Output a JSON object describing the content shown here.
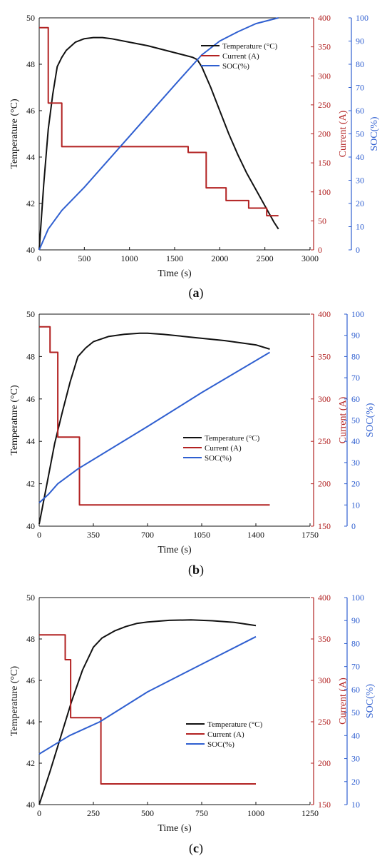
{
  "colors": {
    "temperature": "#111111",
    "current": "#b22222",
    "soc": "#2f5fd0",
    "axis_black": "#111111",
    "axis_red": "#b22222",
    "axis_blue": "#2f5fd0"
  },
  "chart_data": [
    {
      "type": "line",
      "caption": {
        "open": "(",
        "letter": "a",
        "close": ")"
      },
      "xlabel": "Time (s)",
      "ylabel_left": "Temperature (°C)",
      "ylabel_right1": "Current (A)",
      "ylabel_right2": "SOC(%)",
      "xlim": [
        0,
        3000
      ],
      "xticks": [
        0,
        500,
        1000,
        1500,
        2000,
        2500,
        3000
      ],
      "ylim_left": [
        40,
        50
      ],
      "yticks_left": [
        40,
        42,
        44,
        46,
        48,
        50
      ],
      "ylim_right1": [
        0,
        400
      ],
      "yticks_right1": [
        0,
        50,
        100,
        150,
        200,
        250,
        300,
        350,
        400
      ],
      "ylim_right2": [
        0,
        100
      ],
      "yticks_right2": [
        0,
        10,
        20,
        30,
        40,
        50,
        60,
        70,
        80,
        90,
        100
      ],
      "legend": [
        "Temperature (°C)",
        "Current (A)",
        "SOC(%)"
      ],
      "legend_position": "top-right",
      "series": [
        {
          "name": "Temperature (°C)",
          "axis": "left",
          "step": false,
          "x": [
            0,
            50,
            100,
            150,
            200,
            250,
            300,
            400,
            500,
            600,
            700,
            800,
            1000,
            1200,
            1400,
            1600,
            1700,
            1750,
            1800,
            1900,
            2000,
            2100,
            2200,
            2300,
            2400,
            2500,
            2600,
            2650
          ],
          "y": [
            40.0,
            42.8,
            45.2,
            46.7,
            47.9,
            48.3,
            48.6,
            48.95,
            49.1,
            49.15,
            49.15,
            49.1,
            48.95,
            48.8,
            48.6,
            48.4,
            48.3,
            48.2,
            47.9,
            47.0,
            46.0,
            45.0,
            44.1,
            43.3,
            42.6,
            41.9,
            41.2,
            40.9
          ]
        },
        {
          "name": "Current (A)",
          "axis": "right1",
          "step": true,
          "x": [
            0,
            100,
            100,
            250,
            250,
            1650,
            1650,
            1850,
            1850,
            2070,
            2070,
            2320,
            2320,
            2520,
            2520,
            2650
          ],
          "y": [
            383,
            383,
            253,
            253,
            178,
            178,
            168,
            168,
            107,
            107,
            85,
            85,
            72,
            72,
            59,
            59
          ]
        },
        {
          "name": "SOC(%)",
          "axis": "right2",
          "step": false,
          "x": [
            0,
            100,
            250,
            500,
            1000,
            1500,
            1800,
            2000,
            2200,
            2400,
            2600,
            2650
          ],
          "y": [
            0,
            9,
            17,
            27,
            49,
            71,
            84,
            90,
            94,
            97.5,
            99.5,
            100
          ]
        }
      ]
    },
    {
      "type": "line",
      "caption": {
        "open": "(",
        "letter": "b",
        "close": ")"
      },
      "xlabel": "Time (s)",
      "ylabel_left": "Temperature (°C)",
      "ylabel_right1": "Current (A)",
      "ylabel_right2": "SOC(%)",
      "xlim": [
        0,
        1750
      ],
      "xticks": [
        0,
        350,
        700,
        1050,
        1400,
        1750
      ],
      "ylim_left": [
        40,
        50
      ],
      "yticks_left": [
        40,
        42,
        44,
        46,
        48,
        50
      ],
      "ylim_right1": [
        150,
        400
      ],
      "yticks_right1": [
        150,
        200,
        250,
        300,
        350,
        400
      ],
      "ylim_right2": [
        0,
        100
      ],
      "yticks_right2": [
        0,
        10,
        20,
        30,
        40,
        50,
        60,
        70,
        80,
        90,
        100
      ],
      "legend": [
        "Temperature (°C)",
        "Current (A)",
        "SOC(%)"
      ],
      "legend_position": "center-right",
      "series": [
        {
          "name": "Temperature (°C)",
          "axis": "left",
          "step": false,
          "x": [
            0,
            50,
            100,
            150,
            200,
            250,
            300,
            350,
            450,
            550,
            650,
            700,
            800,
            1000,
            1200,
            1400,
            1490
          ],
          "y": [
            40.1,
            42.0,
            43.9,
            45.4,
            46.8,
            48.0,
            48.4,
            48.7,
            48.95,
            49.05,
            49.1,
            49.1,
            49.05,
            48.9,
            48.75,
            48.55,
            48.35
          ]
        },
        {
          "name": "Current (A)",
          "axis": "right1",
          "step": true,
          "x": [
            0,
            70,
            70,
            120,
            120,
            260,
            260,
            1490
          ],
          "y": [
            385,
            385,
            355,
            355,
            255,
            255,
            175,
            175
          ]
        },
        {
          "name": "SOC(%)",
          "axis": "right2",
          "step": false,
          "x": [
            0,
            60,
            120,
            250,
            700,
            1050,
            1490
          ],
          "y": [
            11,
            15,
            20,
            27,
            47,
            63,
            82
          ]
        }
      ]
    },
    {
      "type": "line",
      "caption": {
        "open": "(",
        "letter": "c",
        "close": ")"
      },
      "xlabel": "Time (s)",
      "ylabel_left": "Temperature (°C)",
      "ylabel_right1": "Current (A)",
      "ylabel_right2": "SOC(%)",
      "xlim": [
        0,
        1250
      ],
      "xticks": [
        0,
        250,
        500,
        750,
        1000,
        1250
      ],
      "ylim_left": [
        40,
        50
      ],
      "yticks_left": [
        40,
        42,
        44,
        46,
        48,
        50
      ],
      "ylim_right1": [
        150,
        400
      ],
      "yticks_right1": [
        150,
        200,
        250,
        300,
        350,
        400
      ],
      "ylim_right2": [
        10,
        100
      ],
      "yticks_right2": [
        10,
        20,
        30,
        40,
        50,
        60,
        70,
        80,
        90,
        100
      ],
      "legend": [
        "Temperature (°C)",
        "Current (A)",
        "SOC(%)"
      ],
      "legend_position": "center-right",
      "series": [
        {
          "name": "Temperature (°C)",
          "axis": "left",
          "step": false,
          "x": [
            0,
            50,
            100,
            150,
            200,
            250,
            290,
            350,
            400,
            450,
            500,
            600,
            700,
            800,
            900,
            1000
          ],
          "y": [
            40.0,
            41.6,
            43.3,
            45.0,
            46.5,
            47.6,
            48.05,
            48.4,
            48.6,
            48.75,
            48.82,
            48.9,
            48.92,
            48.88,
            48.8,
            48.65
          ]
        },
        {
          "name": "Current (A)",
          "axis": "right1",
          "step": true,
          "x": [
            0,
            120,
            120,
            145,
            145,
            285,
            285,
            1000
          ],
          "y": [
            355,
            355,
            325,
            325,
            255,
            255,
            175,
            175
          ]
        },
        {
          "name": "SOC(%)",
          "axis": "right2",
          "step": false,
          "x": [
            0,
            70,
            140,
            280,
            500,
            750,
            1000
          ],
          "y": [
            32,
            36,
            40,
            46,
            59,
            71,
            83
          ]
        }
      ]
    }
  ]
}
